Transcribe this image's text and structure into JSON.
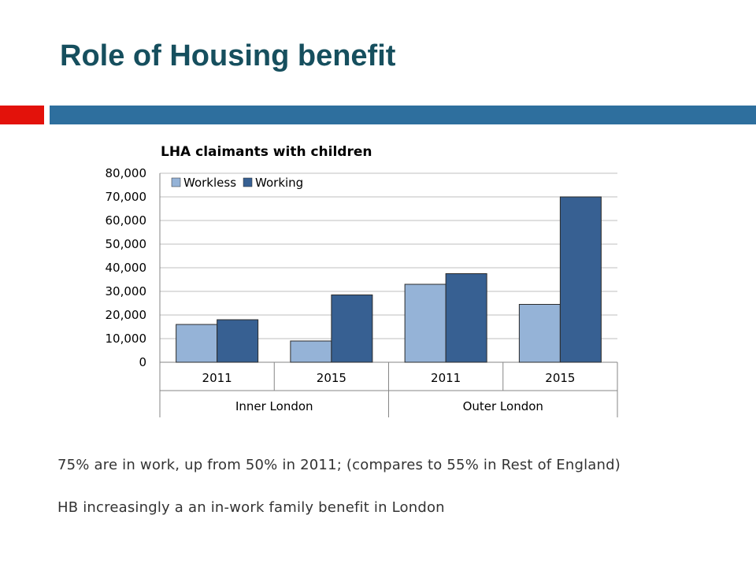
{
  "slide": {
    "title": "Role of Housing benefit",
    "captions": [
      "75% are in work, up from 50% in 2011; (compares to 55% in Rest of England)",
      "HB increasingly a an in-work family benefit in London"
    ]
  },
  "colors": {
    "title": "#164f5e",
    "accent_red": "#e3120b",
    "accent_blue": "#2e6f9e",
    "workless": "#95b3d7",
    "working": "#376092"
  },
  "chart_data": {
    "type": "bar",
    "title": "LHA claimants with children",
    "categories": [
      "2011",
      "2015",
      "2011",
      "2015"
    ],
    "groups": [
      {
        "label": "Inner London",
        "categories": [
          "2011",
          "2015"
        ]
      },
      {
        "label": "Outer London",
        "categories": [
          "2011",
          "2015"
        ]
      }
    ],
    "series": [
      {
        "name": "Workless",
        "values": [
          16000,
          9000,
          33000,
          24500
        ],
        "color": "#95b3d7"
      },
      {
        "name": "Working",
        "values": [
          18000,
          28500,
          37500,
          70000
        ],
        "color": "#376092"
      }
    ],
    "yticks": [
      "0",
      "10,000",
      "20,000",
      "30,000",
      "40,000",
      "50,000",
      "60,000",
      "70,000",
      "80,000"
    ],
    "ylim": [
      0,
      80000
    ],
    "grid": true,
    "legend": "top-left"
  }
}
